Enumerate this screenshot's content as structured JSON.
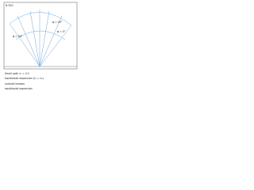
{
  "header": {
    "title": "N 200"
  },
  "plot": {
    "labels": [
      "φ = 90°",
      "φ = 45°",
      "φ = 0°"
    ]
  },
  "legend": {
    "items": [
      "Small path ε₂ = 0.2",
      "equibiaxial expansion (ε₁ = ε₂)",
      "uniaxial tension",
      "equibiaxial expansion"
    ]
  }
}
